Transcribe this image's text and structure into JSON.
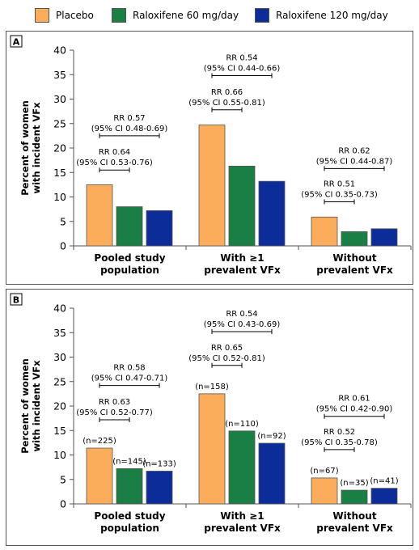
{
  "legend": [
    {
      "label": "Placebo",
      "color": "#fbad5b"
    },
    {
      "label": "Raloxifene 60 mg/day",
      "color": "#1a7f45"
    },
    {
      "label": "Raloxifene 120 mg/day",
      "color": "#0c2d99"
    }
  ],
  "chart_data": [
    {
      "type": "bar",
      "panel_label": "A",
      "ylabel": "Percent of women with incident VFx",
      "ylim": [
        0,
        40
      ],
      "yticks": [
        0,
        5,
        10,
        15,
        20,
        25,
        30,
        35,
        40
      ],
      "categories": [
        [
          "Pooled study",
          "population"
        ],
        [
          "With ≥1",
          "prevalent VFx"
        ],
        [
          "Without",
          "prevalent VFx"
        ]
      ],
      "series": [
        {
          "name": "Placebo",
          "values": [
            12.5,
            24.7,
            5.9
          ]
        },
        {
          "name": "Raloxifene 60 mg/day",
          "values": [
            8.0,
            16.3,
            2.9
          ]
        },
        {
          "name": "Raloxifene 120 mg/day",
          "values": [
            7.2,
            13.2,
            3.5
          ]
        }
      ],
      "annotations": [
        {
          "category": 0,
          "bars": [
            0,
            1
          ],
          "y": 15.5,
          "text": [
            "RR 0.64",
            "(95% CI 0.53-0.76)"
          ]
        },
        {
          "category": 0,
          "bars": [
            0,
            2
          ],
          "y": 22.5,
          "text": [
            "RR 0.57",
            "(95% CI 0.48-0.69)"
          ]
        },
        {
          "category": 1,
          "bars": [
            0,
            1
          ],
          "y": 27.8,
          "text": [
            "RR 0.66",
            "(95% CI 0.55-0.81)"
          ]
        },
        {
          "category": 1,
          "bars": [
            0,
            2
          ],
          "y": 34.8,
          "text": [
            "RR 0.54",
            "(95% CI 0.44-0.66)"
          ]
        },
        {
          "category": 2,
          "bars": [
            0,
            1
          ],
          "y": 9.0,
          "text": [
            "RR 0.51",
            "(95% CI 0.35-0.73)"
          ]
        },
        {
          "category": 2,
          "bars": [
            0,
            2
          ],
          "y": 15.8,
          "text": [
            "RR 0.62",
            "(95% CI 0.44-0.87)"
          ]
        }
      ]
    },
    {
      "type": "bar",
      "panel_label": "B",
      "ylabel": "Percent of women with incident VFx",
      "ylim": [
        0,
        40
      ],
      "yticks": [
        0,
        5,
        10,
        15,
        20,
        25,
        30,
        35,
        40
      ],
      "categories": [
        [
          "Pooled study",
          "population"
        ],
        [
          "With ≥1",
          "prevalent VFx"
        ],
        [
          "Without",
          "prevalent VFx"
        ]
      ],
      "series": [
        {
          "name": "Placebo",
          "values": [
            11.4,
            22.5,
            5.3
          ],
          "labels": [
            "(n=225)",
            "(n=158)",
            "(n=67)"
          ]
        },
        {
          "name": "Raloxifene 60 mg/day",
          "values": [
            7.2,
            14.9,
            2.8
          ],
          "labels": [
            "(n=145)",
            "(n=110)",
            "(n=35)"
          ]
        },
        {
          "name": "Raloxifene 120 mg/day",
          "values": [
            6.7,
            12.4,
            3.2
          ],
          "labels": [
            "(n=133)",
            "(n=92)",
            "(n=41)"
          ]
        }
      ],
      "annotations": [
        {
          "category": 0,
          "bars": [
            0,
            1
          ],
          "y": 17.2,
          "text": [
            "RR 0.63",
            "(95% CI 0.52-0.77)"
          ]
        },
        {
          "category": 0,
          "bars": [
            0,
            2
          ],
          "y": 24.2,
          "text": [
            "RR 0.58",
            "(95% CI 0.47-0.71)"
          ]
        },
        {
          "category": 1,
          "bars": [
            0,
            1
          ],
          "y": 28.3,
          "text": [
            "RR 0.65",
            "(95% CI 0.52-0.81)"
          ]
        },
        {
          "category": 1,
          "bars": [
            0,
            2
          ],
          "y": 35.2,
          "text": [
            "RR 0.54",
            "(95% CI 0.43-0.69)"
          ]
        },
        {
          "category": 2,
          "bars": [
            0,
            1
          ],
          "y": 11.1,
          "text": [
            "RR 0.52",
            "(95% CI 0.35-0.78)"
          ]
        },
        {
          "category": 2,
          "bars": [
            0,
            2
          ],
          "y": 17.9,
          "text": [
            "RR 0.61",
            "(95% CI 0.42-0.90)"
          ]
        }
      ]
    }
  ]
}
